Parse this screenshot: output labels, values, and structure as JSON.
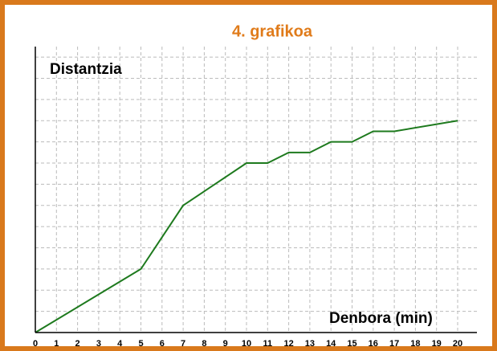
{
  "chart_data": {
    "type": "line",
    "title": "4. grafikoa",
    "x_label": "Denbora (min)",
    "y_label": "Distantzia",
    "x": [
      0,
      5,
      7,
      10,
      11,
      12,
      13,
      14,
      15,
      16,
      17,
      20
    ],
    "series": [
      {
        "name": "Distantzia",
        "color": "#1e7a1e",
        "values": [
          0,
          3,
          6,
          8,
          8,
          8.5,
          8.5,
          9,
          9,
          9.5,
          9.5,
          10
        ]
      }
    ],
    "xlim": [
      0,
      20
    ],
    "xticks": [
      0,
      1,
      2,
      3,
      4,
      5,
      6,
      7,
      8,
      9,
      10,
      11,
      12,
      13,
      14,
      15,
      16,
      17,
      18,
      19,
      20
    ],
    "ylim": [
      0,
      13.5
    ],
    "yticks": [
      0,
      1,
      2,
      3,
      4,
      5,
      6,
      7,
      8,
      9,
      10,
      11,
      12,
      13
    ],
    "grid": true
  }
}
